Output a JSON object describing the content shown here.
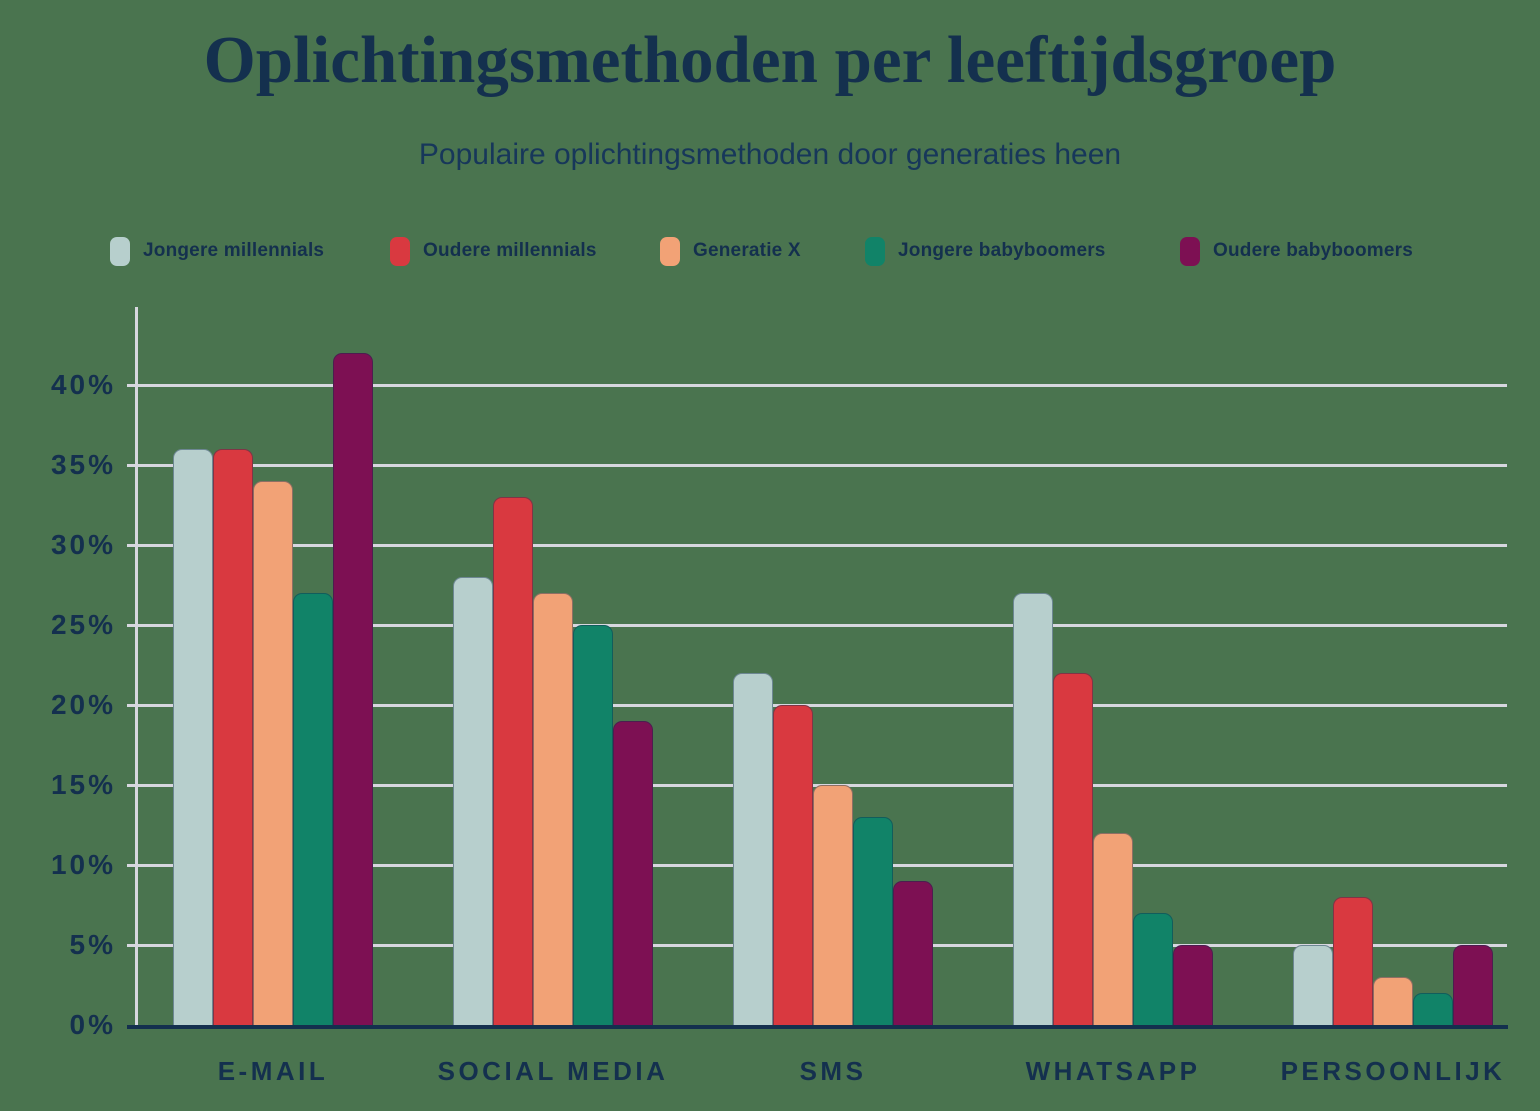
{
  "title": "Oplichtingsmethoden per leeftijdsgroep",
  "subtitle": "Populaire oplichtingsmethoden door generaties heen",
  "colors": {
    "background": "#4A744F",
    "text": "#14304E",
    "gridline": "#D7D7DF",
    "axis": "#14304E"
  },
  "chart_data": {
    "type": "bar",
    "title": "Oplichtingsmethoden per leeftijdsgroep",
    "subtitle": "Populaire oplichtingsmethoden door generaties heen",
    "categories": [
      "E-MAIL",
      "SOCIAL MEDIA",
      "SMS",
      "WHATSAPP",
      "PERSOONLIJK"
    ],
    "series": [
      {
        "name": "Jongere millennials",
        "color": "#B7CFCD",
        "values": [
          36,
          28,
          22,
          27,
          5
        ]
      },
      {
        "name": "Oudere millennials",
        "color": "#D93940",
        "values": [
          36,
          33,
          20,
          22,
          8
        ]
      },
      {
        "name": "Generatie X",
        "color": "#F2A276",
        "values": [
          34,
          27,
          15,
          12,
          3
        ]
      },
      {
        "name": "Jongere babyboomers",
        "color": "#118368",
        "values": [
          27,
          25,
          13,
          7,
          2
        ]
      },
      {
        "name": "Oudere babyboomers",
        "color": "#7D1053",
        "values": [
          42,
          19,
          9,
          5,
          5
        ]
      }
    ],
    "ytick_values": [
      0,
      5,
      10,
      15,
      20,
      25,
      30,
      35,
      40
    ],
    "ytick_labels": [
      "0%",
      "5%",
      "10%",
      "15%",
      "20%",
      "25%",
      "30%",
      "35%",
      "40%"
    ],
    "ylim": [
      0,
      45
    ],
    "grid": true,
    "legend_position": "top"
  }
}
